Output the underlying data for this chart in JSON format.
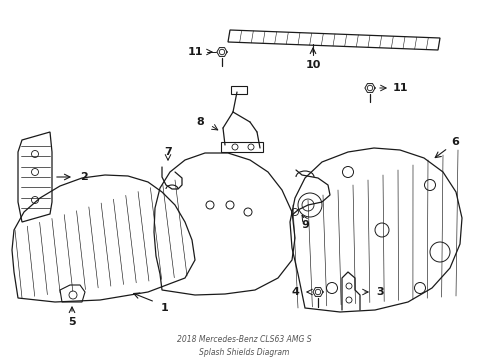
{
  "bg_color": "#ffffff",
  "line_color": "#1a1a1a",
  "fig_width": 4.89,
  "fig_height": 3.6,
  "dpi": 100,
  "bottom_text": "2018 Mercedes-Benz CLS63 AMG S\nSplash Shields Diagram"
}
